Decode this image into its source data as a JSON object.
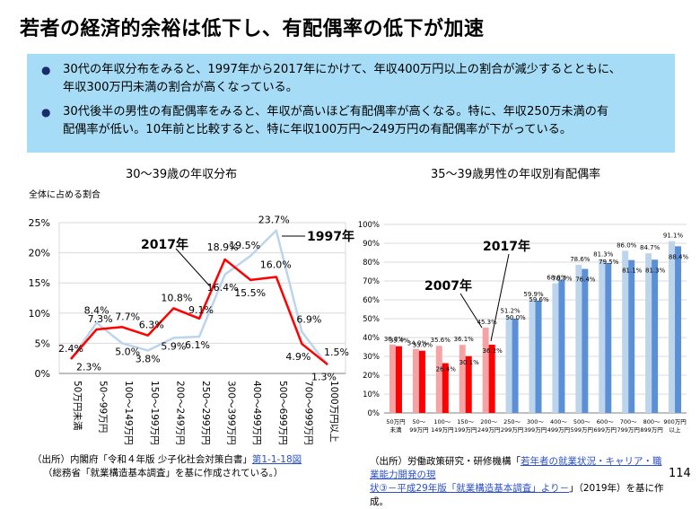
{
  "title": "若者の経済的余裕は低下し、有配偶率の低下が加速",
  "bullets": [
    {
      "line1": "30代の年収分布をみると、1997年から2017年にかけて、年収400万円以上の割合が減少するとともに、",
      "line2": "年収300万円未満の割合が高くなっている。"
    },
    {
      "line1": "30代後半の男性の有配偶率をみると、年収が高いほど有配偶率が高くなる。特に、年収250万未満の有",
      "line2": "配偶率が低い。10年前と比較すると、特に年収100万円～249万円の有配偶率が下がっている。"
    }
  ],
  "colors": {
    "banner": "#a6dcf5",
    "red": "#ff0000",
    "lightblue": "#bcd4ec",
    "blue": "#5b8fd6",
    "pink": "#f4a4a4"
  },
  "chart_data": [
    {
      "type": "line",
      "title": "30～39歳の年収分布",
      "ylabel": "全体に占める割合",
      "ylim": [
        0,
        25
      ],
      "yticks": [
        "0%",
        "5%",
        "10%",
        "15%",
        "20%",
        "25%"
      ],
      "categories": [
        "50万円未満",
        "50～99万円",
        "100～149万円",
        "150～199万円",
        "200～249万円",
        "250～299万円",
        "300～399万円",
        "400～499万円",
        "500～699万円",
        "700～999万円",
        "1000万円以上"
      ],
      "series": [
        {
          "name": "2017年",
          "color": "#ff0000",
          "values": [
            2.4,
            7.3,
            7.7,
            6.3,
            10.8,
            9.1,
            18.9,
            15.5,
            16.0,
            4.9,
            1.5
          ],
          "labels": [
            "2.4%",
            "7.3%",
            "7.7%",
            "6.3%",
            "10.8%",
            "9.1%",
            "18.9%",
            "15.5%",
            "16.0%",
            "4.9%",
            "1.5%"
          ]
        },
        {
          "name": "1997年",
          "color": "#bcd4ec",
          "values": [
            2.3,
            8.4,
            5.0,
            3.8,
            5.9,
            6.1,
            16.4,
            19.5,
            23.7,
            6.9,
            1.3
          ],
          "labels": [
            "2.3%",
            "8.4%",
            "5.0%",
            "3.8%",
            "5.9%",
            "6.1%",
            "16.4%",
            "19.5%",
            "23.7%",
            "6.9%",
            "1.3%"
          ]
        }
      ]
    },
    {
      "type": "bar",
      "title": "35～39歳男性の年収別有配偶率",
      "ylim": [
        0,
        100
      ],
      "yticks": [
        "0%",
        "10%",
        "20%",
        "30%",
        "40%",
        "50%",
        "60%",
        "70%",
        "80%",
        "90%",
        "100%"
      ],
      "categories": [
        {
          "l1": "50万円",
          "l2": "未満"
        },
        {
          "l1": "50～",
          "l2": "99万円"
        },
        {
          "l1": "100～",
          "l2": "149万円"
        },
        {
          "l1": "150～",
          "l2": "199万円"
        },
        {
          "l1": "200～",
          "l2": "249万円"
        },
        {
          "l1": "250～",
          "l2": "299万円"
        },
        {
          "l1": "300～",
          "l2": "399万円"
        },
        {
          "l1": "400～",
          "l2": "499万円"
        },
        {
          "l1": "500～",
          "l2": "599万円"
        },
        {
          "l1": "600～",
          "l2": "699万円"
        },
        {
          "l1": "700～",
          "l2": "799万円"
        },
        {
          "l1": "800～",
          "l2": "899万円"
        },
        {
          "l1": "900万円",
          "l2": "以上"
        }
      ],
      "series": [
        {
          "name": "2007年",
          "values": [
            36.3,
            34.0,
            35.6,
            36.1,
            45.3,
            51.2,
            59.9,
            68.8,
            78.6,
            81.3,
            86.0,
            84.7,
            91.1
          ],
          "labels": [
            "36.3%",
            "34.0%",
            "35.6%",
            "36.1%",
            "45.3%",
            "51.2%",
            "59.9%",
            "68.8%",
            "78.6%",
            "81.3%",
            "86.0%",
            "84.7%",
            "91.1%"
          ]
        },
        {
          "name": "2017年",
          "values": [
            35.4,
            33.0,
            26.4,
            30.1,
            36.2,
            50.0,
            59.6,
            70.7,
            76.4,
            79.5,
            81.1,
            81.3,
            88.4
          ],
          "labels": [
            "35.4%",
            "33.0%",
            "26.4%",
            "30.1%",
            "36.2%",
            "50.0%",
            "59.6%",
            "70.7%",
            "76.4%",
            "79.5%",
            "81.1%",
            "81.3%",
            "88.4%"
          ]
        }
      ]
    }
  ],
  "footnotes": {
    "left": {
      "line1_prefix": "（出所）内閣府「令和４年版 少子化社会対策白書」",
      "line1_link": "第1-1-18図",
      "line2": "（総務省「就業構造基本調査」を基に作成されている。）"
    },
    "right": {
      "prefix": "（出所）労働政策研究・研修機構「",
      "link1": "若年者の就業状況・キャリア・職業能力開発の現",
      "link2": "状③－平成29年版「就業構造基本調査」より－",
      "suffix": "」（2019年）を基に作成。"
    }
  },
  "page_number": "114"
}
